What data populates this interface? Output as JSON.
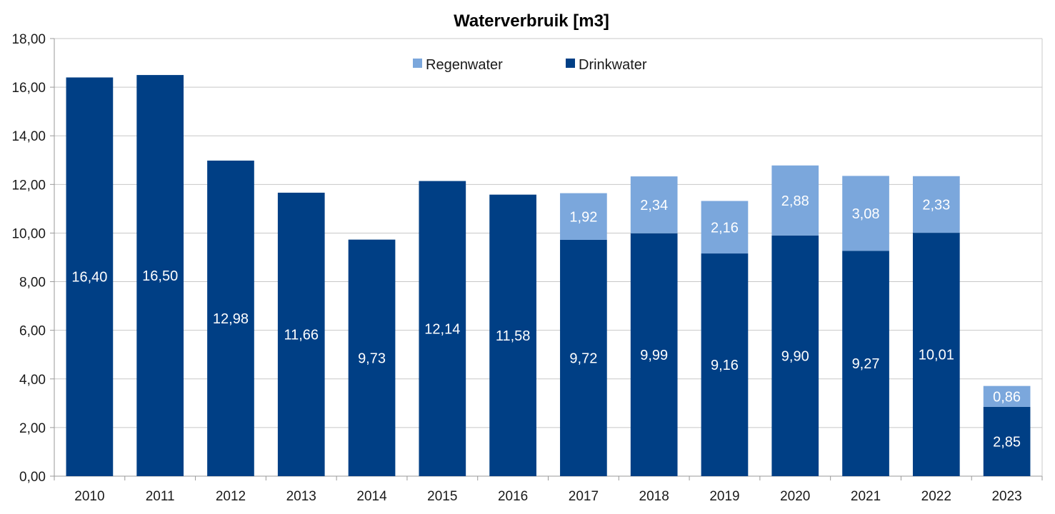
{
  "colors": {
    "drinkwater": "#003f85",
    "regenwater": "#7ba7dc",
    "grid": "#c8c8c8",
    "axis": "#999999"
  },
  "chart_data": {
    "type": "bar",
    "stacked": true,
    "title": "Waterverbruik [m3]",
    "xlabel": "",
    "ylabel": "",
    "ylim": [
      0,
      18
    ],
    "y_ticks": [
      "0,00",
      "2,00",
      "4,00",
      "6,00",
      "8,00",
      "10,00",
      "12,00",
      "14,00",
      "16,00",
      "18,00"
    ],
    "categories": [
      "2010",
      "2011",
      "2012",
      "2013",
      "2014",
      "2015",
      "2016",
      "2017",
      "2018",
      "2019",
      "2020",
      "2021",
      "2022",
      "2023"
    ],
    "legend_position": "top-center",
    "grid": true,
    "series": [
      {
        "name": "Drinkwater",
        "color_key": "drinkwater",
        "values": [
          16.4,
          16.5,
          12.98,
          11.66,
          9.73,
          12.14,
          11.58,
          9.72,
          9.99,
          9.16,
          9.9,
          9.27,
          10.01,
          2.85
        ],
        "labels": [
          "16,40",
          "16,50",
          "12,98",
          "11,66",
          "9,73",
          "12,14",
          "11,58",
          "9,72",
          "9,99",
          "9,16",
          "9,90",
          "9,27",
          "10,01",
          "2,85"
        ]
      },
      {
        "name": "Regenwater",
        "color_key": "regenwater",
        "values": [
          null,
          null,
          null,
          null,
          null,
          null,
          null,
          1.92,
          2.34,
          2.16,
          2.88,
          3.08,
          2.33,
          0.86
        ],
        "labels": [
          null,
          null,
          null,
          null,
          null,
          null,
          null,
          "1,92",
          "2,34",
          "2,16",
          "2,88",
          "3,08",
          "2,33",
          "0,86"
        ]
      }
    ],
    "legend": [
      "Regenwater",
      "Drinkwater"
    ]
  }
}
